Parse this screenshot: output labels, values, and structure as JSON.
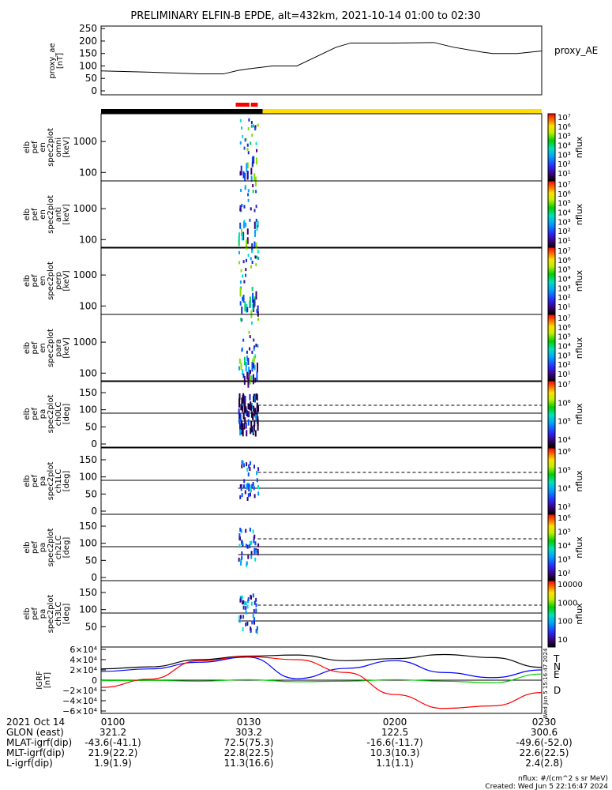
{
  "title": "PRELIMINARY ELFIN-B EPDE, alt=432km, 2021-10-14 01:00 to 02:30",
  "proxy_panel": {
    "ylabel": "proxy_ae\n[nT]",
    "legend": "proxy_AE",
    "ticks": [
      "250",
      "200",
      "150",
      "100",
      "50",
      "0"
    ]
  },
  "spectro_panels": [
    {
      "ylabel": "elb\npef\nen\nspec2plot\nomni\n[keV]",
      "ticks": [
        "1000",
        "100"
      ],
      "cbar_ticks": [
        "10⁷",
        "10⁶",
        "10⁵",
        "10⁴",
        "10³",
        "10²",
        "10¹"
      ],
      "cbar_label": "nflux"
    },
    {
      "ylabel": "elb\npef\nen\nspec2plot\nanti\n[keV]",
      "ticks": [
        "1000",
        "100"
      ],
      "cbar_ticks": [
        "10⁷",
        "10⁶",
        "10⁵",
        "10⁴",
        "10³",
        "10²",
        "10¹"
      ],
      "cbar_label": "nflux"
    },
    {
      "ylabel": "elb\npef\nen\nspec2plot\nperp\n[keV]",
      "ticks": [
        "1000",
        "100"
      ],
      "cbar_ticks": [
        "10⁷",
        "10⁶",
        "10⁵",
        "10⁴",
        "10³",
        "10²",
        "10¹"
      ],
      "cbar_label": "nflux"
    },
    {
      "ylabel": "elb\npef\nen\nspec2plot\npara\n[keV]",
      "ticks": [
        "1000",
        "100"
      ],
      "cbar_ticks": [
        "10⁷",
        "10⁶",
        "10⁵",
        "10⁴",
        "10³",
        "10²",
        "10¹"
      ],
      "cbar_label": "nflux"
    }
  ],
  "pa_panels": [
    {
      "ylabel": "elb\npef\npa\nspec2plot\nch0LC\n[deg]",
      "ticks": [
        "150",
        "100",
        "50",
        "0"
      ],
      "cbar_ticks": [
        "10⁷",
        "10⁶",
        "10⁵",
        "10⁴"
      ],
      "cbar_label": "nflux"
    },
    {
      "ylabel": "elb\npef\npa\nspec2plot\nch1LC\n[deg]",
      "ticks": [
        "150",
        "100",
        "50",
        "0"
      ],
      "cbar_ticks": [
        "10⁶",
        "10⁵",
        "10⁴",
        "10³"
      ],
      "cbar_label": "nflux"
    },
    {
      "ylabel": "elb\npef\npa\nspec2plot\nch2LC\n[deg]",
      "ticks": [
        "150",
        "100",
        "50",
        "0"
      ],
      "cbar_ticks": [
        "10⁶",
        "10⁵",
        "10⁴",
        "10³",
        "10²"
      ],
      "cbar_label": "nflux"
    },
    {
      "ylabel": "elb\npef\npa\nspec2plot\nch3LC\n[deg]",
      "ticks": [
        "150",
        "100",
        "50"
      ],
      "cbar_ticks": [
        "10000",
        "1000",
        "100",
        "10"
      ],
      "cbar_label": "nflux"
    }
  ],
  "igrf_panel": {
    "ylabel": "IGRF\n[nT]",
    "ticks": [
      "6×10⁴",
      "4×10⁴",
      "2×10⁴",
      "0",
      "−2×10⁴",
      "−4×10⁴",
      "−6×10⁴"
    ],
    "legend": [
      {
        "label": "T",
        "color": "#000000"
      },
      {
        "label": "N",
        "color": "#0000ff"
      },
      {
        "label": "E",
        "color": "#00cc00"
      },
      {
        "label": "D",
        "color": "#ff0000"
      }
    ],
    "side_note": "Wed Jun  5 15:16:47 2024"
  },
  "footer": {
    "rows": [
      {
        "label": "2021 Oct 14",
        "values": [
          "0100",
          "0130",
          "0200",
          "0230"
        ]
      },
      {
        "label": "GLON (east)",
        "values": [
          "321.2",
          "303.2",
          "122.5",
          "300.6"
        ]
      },
      {
        "label": "MLAT-igrf(dip)",
        "values": [
          "-43.6(-41.1)",
          "72.5(75.3)",
          "-16.6(-11.7)",
          "-49.6(-52.0)"
        ]
      },
      {
        "label": "MLT-igrf(dip)",
        "values": [
          "21.9(22.2)",
          "22.8(22.5)",
          "10.3(10.3)",
          "22.6(22.5)"
        ]
      },
      {
        "label": "L-igrf(dip)",
        "values": [
          "1.9(1.9)",
          "11.3(16.6)",
          "1.1(1.1)",
          "2.4(2.8)"
        ]
      }
    ],
    "unit_note": "nflux: #/(cm^2 s sr MeV)",
    "created": "Created: Wed Jun  5 22:16:47 2024"
  },
  "colors": {
    "night_bar": "#000000",
    "day_bar": "#ffdd00",
    "science_bar": "#ff0000",
    "T": "#000000",
    "N": "#0000ff",
    "E": "#00cc00",
    "D": "#ff0000"
  },
  "chart_data": {
    "type": "line",
    "x_range": [
      "01:00",
      "02:30"
    ],
    "proxy_ae": {
      "ylim": [
        0,
        260
      ],
      "x_minutes": [
        0,
        10,
        20,
        25,
        28,
        30,
        35,
        40,
        48,
        51,
        55,
        60,
        68,
        72,
        78,
        80,
        85,
        90
      ],
      "y": [
        80,
        75,
        68,
        68,
        82,
        88,
        100,
        100,
        175,
        192,
        192,
        192,
        194,
        175,
        155,
        150,
        150,
        160
      ]
    },
    "igrf": {
      "ylim": [
        -60000,
        60000
      ],
      "x_minutes": [
        0,
        10,
        20,
        30,
        40,
        50,
        60,
        70,
        80,
        90
      ],
      "series": [
        {
          "name": "T",
          "values": [
            22000,
            26000,
            40000,
            47000,
            49000,
            38000,
            42000,
            50000,
            44000,
            25000
          ]
        },
        {
          "name": "N",
          "values": [
            17000,
            22000,
            35000,
            45000,
            3000,
            23000,
            38000,
            15000,
            5000,
            20000
          ]
        },
        {
          "name": "E",
          "values": [
            -1000,
            -500,
            -2000,
            1000,
            -3000,
            -2000,
            1000,
            -2000,
            -5000,
            12000
          ]
        },
        {
          "name": "D",
          "values": [
            -14000,
            2000,
            38000,
            46000,
            40000,
            15000,
            -28000,
            -55000,
            -50000,
            -24000
          ]
        }
      ]
    },
    "energy_spectra": {
      "ylim_keV": [
        60,
        7000
      ],
      "active_interval_minutes": [
        28,
        32
      ]
    },
    "pitch_angle": {
      "ylim_deg": [
        0,
        180
      ],
      "reference_lines_deg": [
        90,
        67
      ],
      "dashed_line_deg": 113,
      "active_interval_minutes": [
        28,
        32
      ]
    }
  }
}
